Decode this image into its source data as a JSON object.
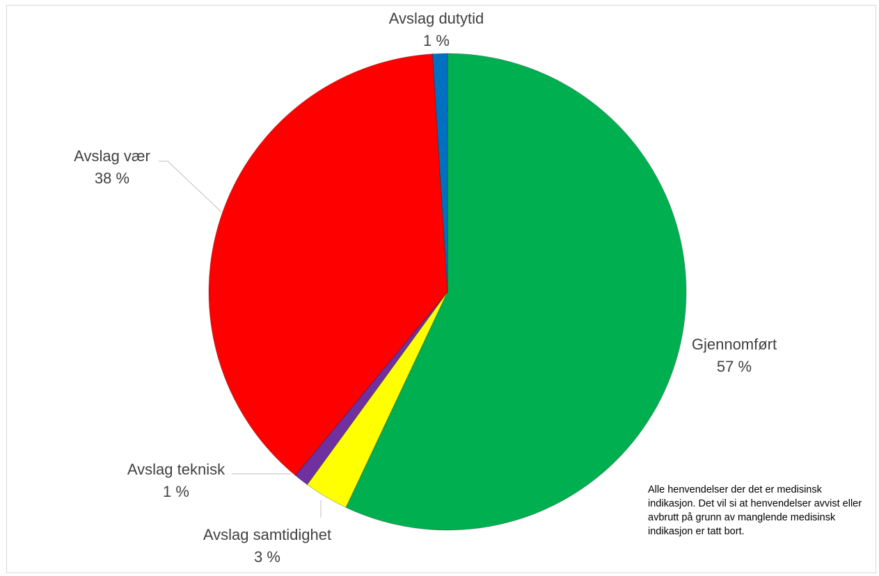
{
  "chart_data": {
    "type": "pie",
    "slices": [
      {
        "label": "Gjennomført",
        "value": 57,
        "value_label": "57 %",
        "color": "#00b050"
      },
      {
        "label": "Avslag samtidighet",
        "value": 3,
        "value_label": "3 %",
        "color": "#ffff00"
      },
      {
        "label": "Avslag teknisk",
        "value": 1,
        "value_label": "1 %",
        "color": "#7030a0"
      },
      {
        "label": "Avslag vær",
        "value": 38,
        "value_label": "38 %",
        "color": "#ff0000"
      },
      {
        "label": "Avslag dutytid",
        "value": 1,
        "value_label": "1 %",
        "color": "#0070c0"
      }
    ],
    "start_angle": "12 o'clock",
    "direction": "clockwise",
    "legend": "none",
    "note": "Alle henvendelser der det er medisinsk indikasjon. Det vil si at henvendelser avvist eller avbrutt på grunn av manglende medisinsk indikasjon er tatt bort."
  }
}
